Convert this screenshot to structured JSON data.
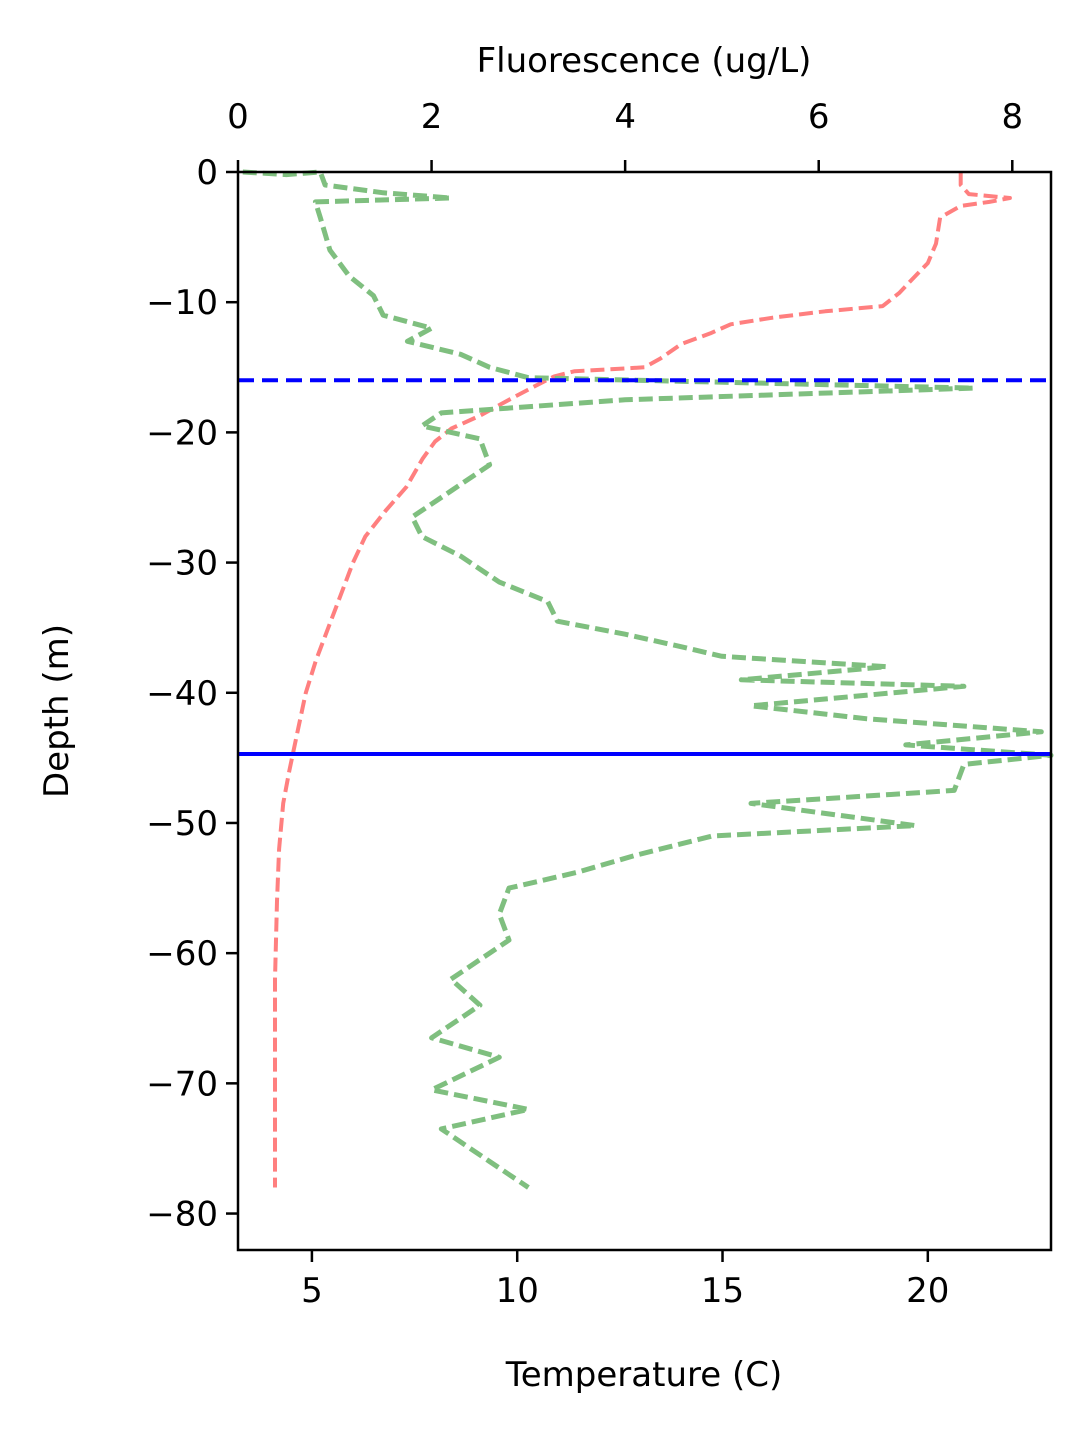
{
  "chart_data": {
    "type": "line",
    "title": "",
    "xlabel_bottom": "Temperature (C)",
    "xlabel_top": "Fluorescence (ug/L)",
    "ylabel": "Depth (m)",
    "xlim_bottom": [
      3.2,
      23.0
    ],
    "xlim_top": [
      0,
      8.4
    ],
    "ylim": [
      -82.8,
      0
    ],
    "xticks_bottom": [
      5,
      10,
      15,
      20
    ],
    "xticks_top": [
      0,
      2,
      4,
      6,
      8
    ],
    "yticks": [
      0,
      -10,
      -20,
      -30,
      -40,
      -50,
      -60,
      -70,
      -80
    ],
    "xtick_labels_bottom": [
      "5",
      "10",
      "15",
      "20"
    ],
    "xtick_labels_top": [
      "0",
      "2",
      "4",
      "6",
      "8"
    ],
    "ytick_labels": [
      "0",
      "−10",
      "−20",
      "−30",
      "−40",
      "−50",
      "−60",
      "−70",
      "−80"
    ],
    "grid": false,
    "colors": {
      "temperature": "#ff7f7f",
      "fluorescence": "#7fbf7f",
      "reference_lines": "#0000ff"
    },
    "series": [
      {
        "axis": "bottom",
        "style": "dashed",
        "points": [
          [
            20.8,
            0
          ],
          [
            20.8,
            -1.0
          ],
          [
            21.0,
            -1.7
          ],
          [
            22.0,
            -2.0
          ],
          [
            21.5,
            -2.3
          ],
          [
            20.8,
            -2.6
          ],
          [
            20.3,
            -3.5
          ],
          [
            20.2,
            -5.5
          ],
          [
            20.0,
            -7.0
          ],
          [
            19.6,
            -8.3
          ],
          [
            19.3,
            -9.3
          ],
          [
            18.9,
            -10.3
          ],
          [
            17.5,
            -10.7
          ],
          [
            16.2,
            -11.2
          ],
          [
            15.2,
            -11.7
          ],
          [
            14.7,
            -12.4
          ],
          [
            14.0,
            -13.2
          ],
          [
            13.5,
            -14.3
          ],
          [
            13.1,
            -15.0
          ],
          [
            12.0,
            -15.2
          ],
          [
            11.4,
            -15.3
          ],
          [
            10.9,
            -15.7
          ],
          [
            10.4,
            -16.5
          ],
          [
            9.8,
            -17.5
          ],
          [
            9.1,
            -18.7
          ],
          [
            8.4,
            -19.7
          ],
          [
            8.0,
            -20.7
          ],
          [
            7.7,
            -22.0
          ],
          [
            7.3,
            -24.2
          ],
          [
            6.8,
            -26.0
          ],
          [
            6.3,
            -28.0
          ],
          [
            6.0,
            -30.0
          ],
          [
            5.7,
            -32.5
          ],
          [
            5.4,
            -35.0
          ],
          [
            5.1,
            -37.5
          ],
          [
            4.85,
            -40.0
          ],
          [
            4.65,
            -43.0
          ],
          [
            4.45,
            -46.0
          ],
          [
            4.3,
            -48.5
          ],
          [
            4.2,
            -52.0
          ],
          [
            4.15,
            -56.0
          ],
          [
            4.1,
            -62.0
          ],
          [
            4.1,
            -70.0
          ],
          [
            4.1,
            -78.0
          ]
        ]
      },
      {
        "axis": "top",
        "style": "dashed",
        "points": [
          [
            0.05,
            0
          ],
          [
            0.5,
            -0.2
          ],
          [
            0.85,
            0.0
          ],
          [
            0.9,
            -1.0
          ],
          [
            1.5,
            -1.6
          ],
          [
            2.2,
            -2.0
          ],
          [
            0.8,
            -2.3
          ],
          [
            0.85,
            -3.5
          ],
          [
            0.95,
            -6.0
          ],
          [
            1.15,
            -8.0
          ],
          [
            1.4,
            -9.5
          ],
          [
            1.5,
            -11.0
          ],
          [
            2.0,
            -12.0
          ],
          [
            1.75,
            -13.0
          ],
          [
            2.3,
            -14.0
          ],
          [
            2.6,
            -15.0
          ],
          [
            3.0,
            -15.8
          ],
          [
            7.6,
            -16.6
          ],
          [
            4.0,
            -17.5
          ],
          [
            2.1,
            -18.5
          ],
          [
            1.9,
            -19.5
          ],
          [
            2.5,
            -20.5
          ],
          [
            2.6,
            -22.5
          ],
          [
            2.2,
            -24.5
          ],
          [
            1.8,
            -26.5
          ],
          [
            1.9,
            -28.0
          ],
          [
            2.3,
            -29.5
          ],
          [
            2.7,
            -31.5
          ],
          [
            3.2,
            -33.0
          ],
          [
            3.3,
            -34.5
          ],
          [
            4.0,
            -35.5
          ],
          [
            4.6,
            -36.5
          ],
          [
            5.0,
            -37.2
          ],
          [
            6.7,
            -38.0
          ],
          [
            5.2,
            -39.0
          ],
          [
            7.5,
            -39.5
          ],
          [
            5.3,
            -41.0
          ],
          [
            6.5,
            -42.0
          ],
          [
            8.3,
            -43.0
          ],
          [
            6.9,
            -44.0
          ],
          [
            8.4,
            -44.8
          ],
          [
            7.5,
            -45.5
          ],
          [
            7.4,
            -47.5
          ],
          [
            5.3,
            -48.5
          ],
          [
            7.0,
            -50.2
          ],
          [
            4.9,
            -51.0
          ],
          [
            4.1,
            -52.5
          ],
          [
            3.5,
            -53.8
          ],
          [
            2.8,
            -55.0
          ],
          [
            2.7,
            -57.0
          ],
          [
            2.8,
            -59.0
          ],
          [
            2.2,
            -62.0
          ],
          [
            2.5,
            -64.0
          ],
          [
            2.0,
            -66.5
          ],
          [
            2.7,
            -68.0
          ],
          [
            2.0,
            -70.5
          ],
          [
            3.0,
            -72.0
          ],
          [
            2.1,
            -73.5
          ],
          [
            2.6,
            -76.0
          ],
          [
            3.0,
            -78.0
          ]
        ]
      }
    ],
    "reference_lines": [
      {
        "y": -16.0,
        "style": "dashed"
      },
      {
        "y": -44.7,
        "style": "solid"
      }
    ]
  }
}
